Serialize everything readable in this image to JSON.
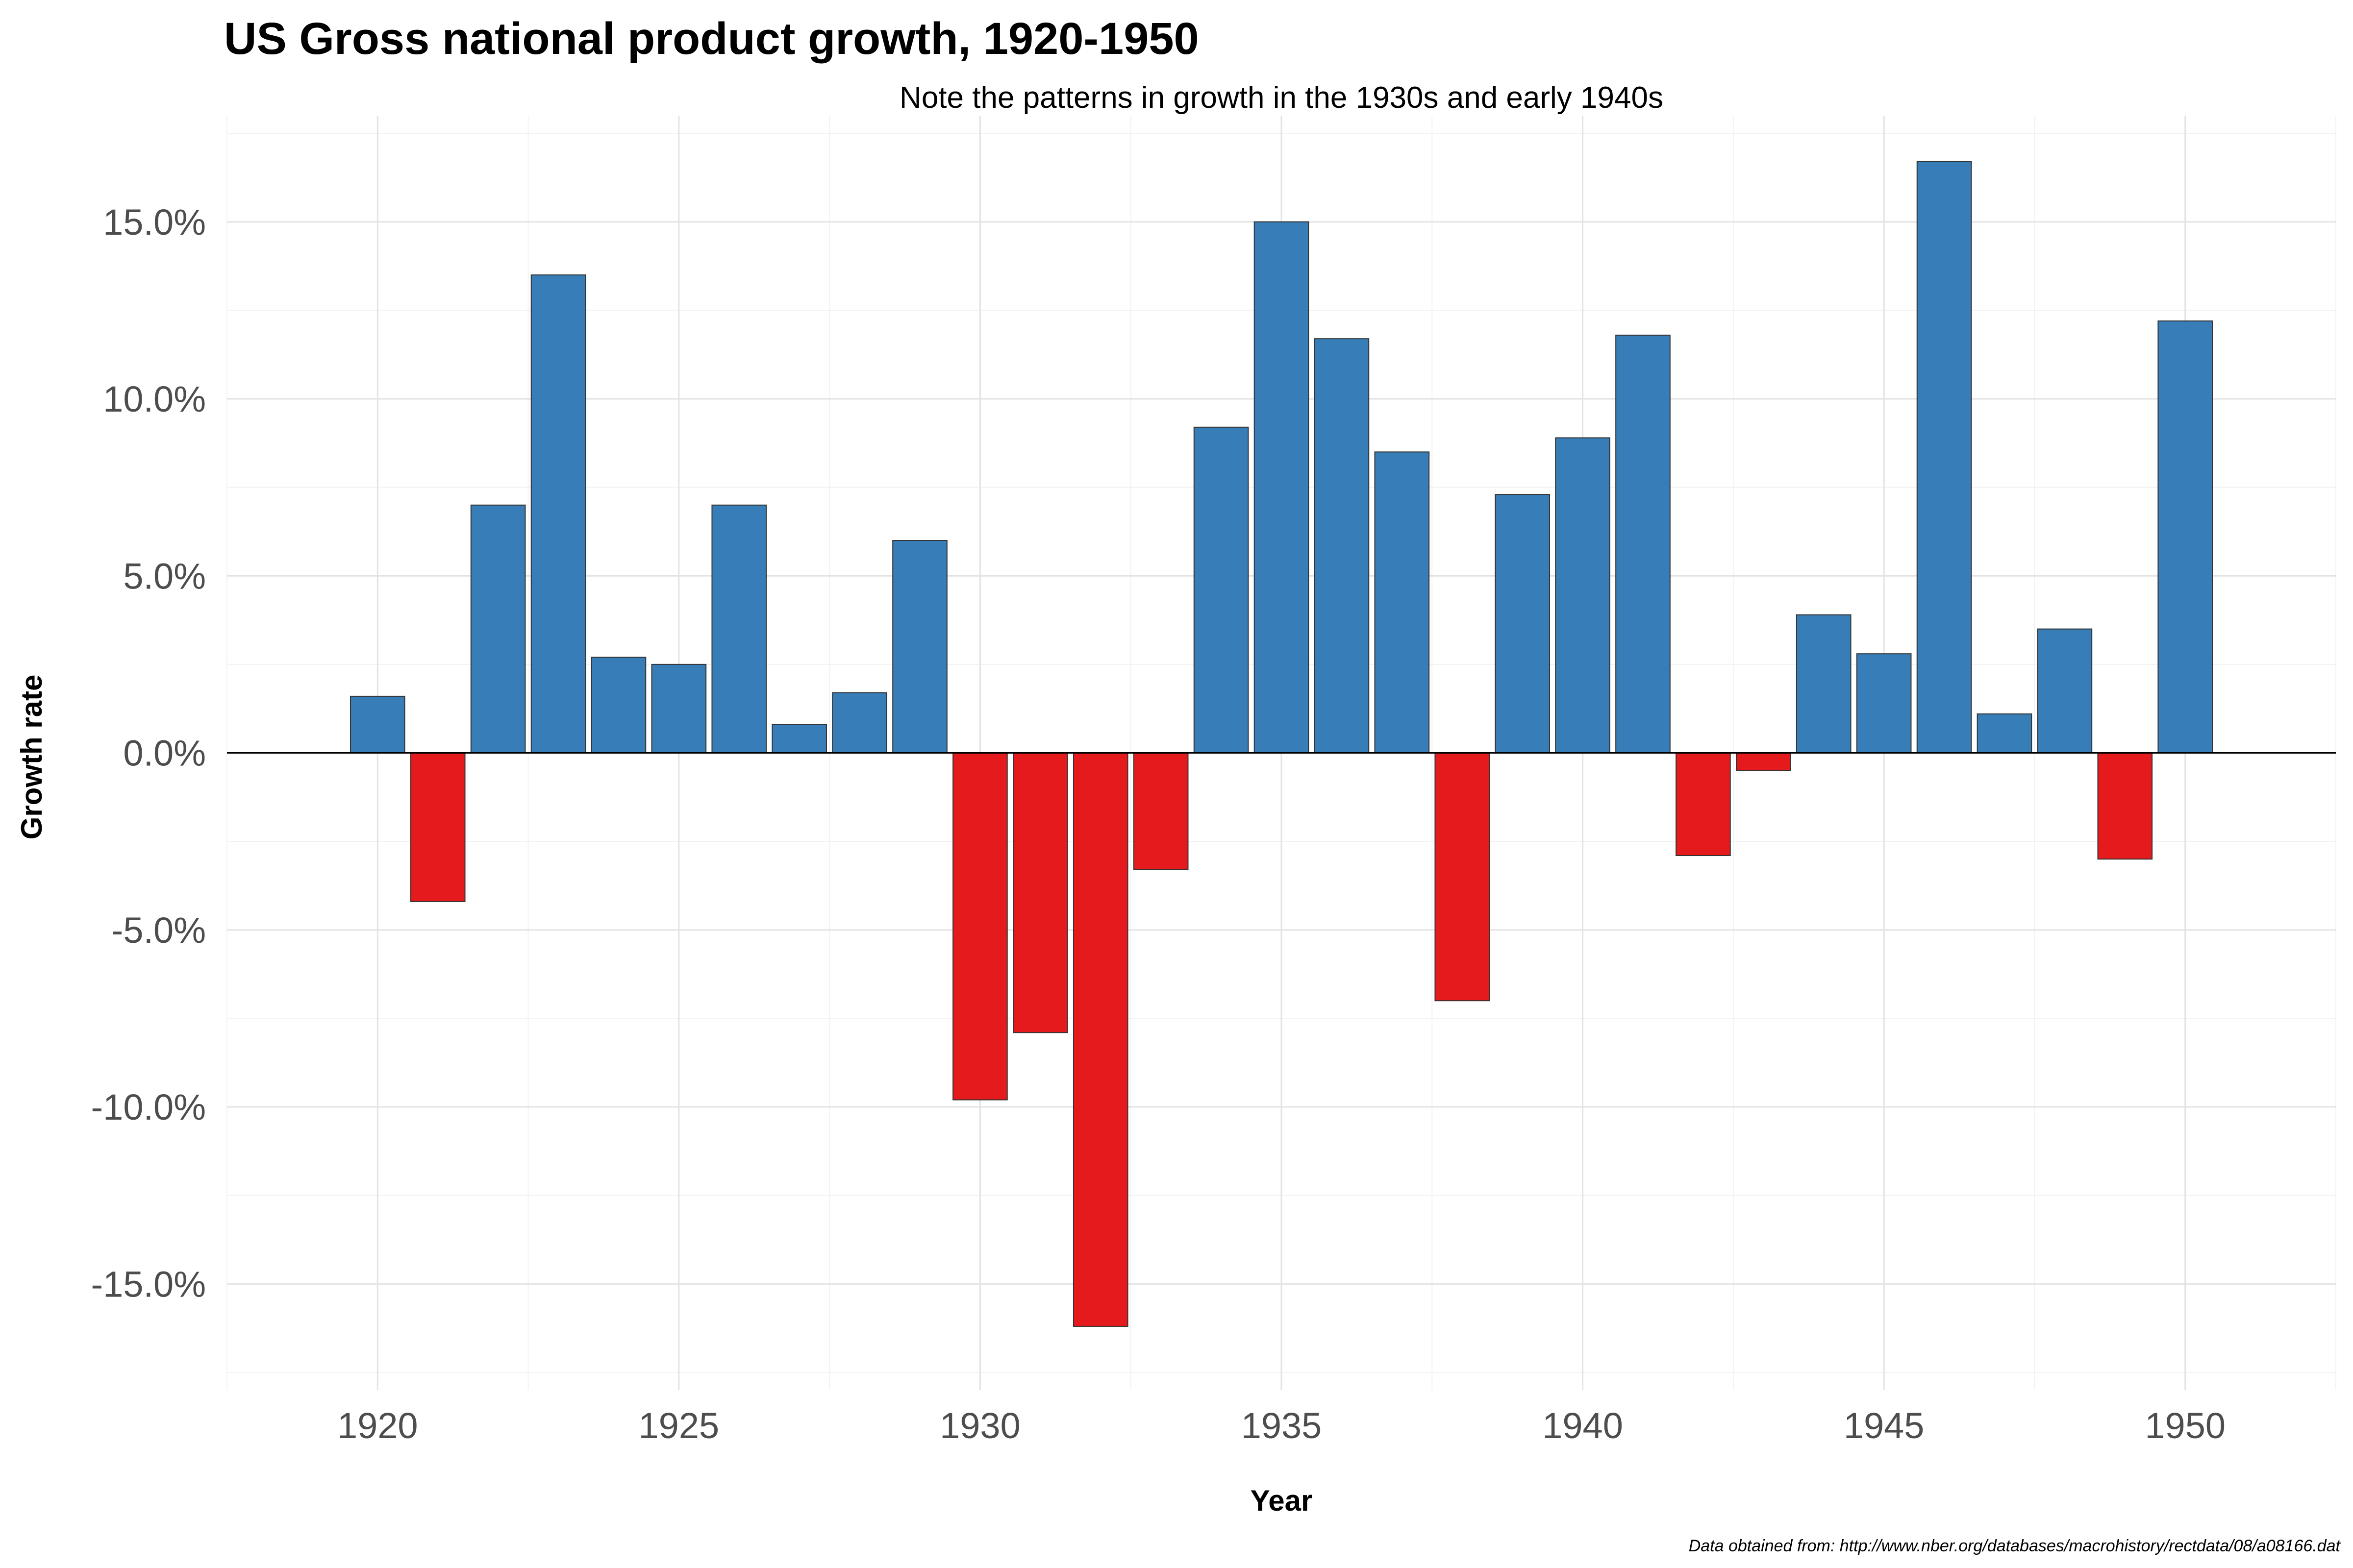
{
  "chart_data": {
    "type": "bar",
    "title": "US Gross national product growth, 1920-1950",
    "subtitle": "Note the patterns in growth in the 1930s and early 1940s",
    "xlabel": "Year",
    "ylabel": "Growth rate",
    "caption": "Data obtained from: http://www.nber.org/databases/macrohistory/rectdata/08/a08166.dat",
    "xlim": [
      1917.5,
      1952.5
    ],
    "ylim": [
      -18,
      18
    ],
    "x_ticks": [
      1920,
      1925,
      1930,
      1935,
      1940,
      1945,
      1950
    ],
    "x_tick_labels": [
      "1920",
      "1925",
      "1930",
      "1935",
      "1940",
      "1945",
      "1950"
    ],
    "y_ticks": [
      -15,
      -10,
      -5,
      0,
      5,
      10,
      15
    ],
    "y_tick_labels": [
      "-15.0%",
      "-10.0%",
      "-5.0%",
      "0.0%",
      "5.0%",
      "10.0%",
      "15.0%"
    ],
    "grid": true,
    "legend": "none",
    "positive_color": "#377EB8",
    "negative_color": "#E41A1C",
    "x": [
      1920,
      1921,
      1922,
      1923,
      1924,
      1925,
      1926,
      1927,
      1928,
      1929,
      1930,
      1931,
      1932,
      1933,
      1934,
      1935,
      1936,
      1937,
      1938,
      1939,
      1940,
      1941,
      1942,
      1943,
      1944,
      1945,
      1946,
      1947,
      1948,
      1949,
      1950
    ],
    "values": [
      1.6,
      -4.2,
      7.0,
      13.5,
      2.7,
      2.5,
      7.0,
      0.8,
      1.7,
      6.0,
      -9.8,
      -7.9,
      -16.2,
      -3.3,
      9.2,
      15.0,
      11.7,
      8.5,
      -7.0,
      7.3,
      8.9,
      11.8,
      -2.9,
      -0.5,
      3.9,
      2.8,
      16.7,
      1.1,
      3.5,
      -3.0,
      12.2
    ]
  }
}
